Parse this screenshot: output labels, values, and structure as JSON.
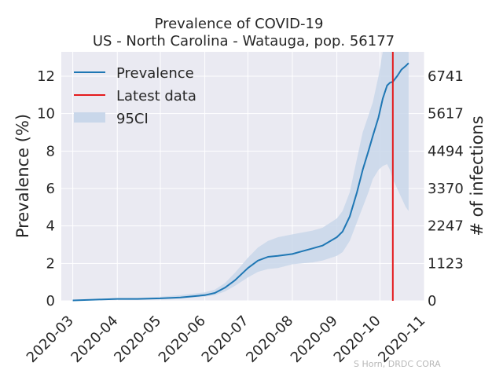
{
  "chart_data": {
    "type": "line",
    "title": "Prevalence of COVID-19",
    "subtitle": "US - North Carolina - Watauga, pop. 56177",
    "ylabel": "Prevalence (%)",
    "y2label": "# of infections",
    "credit": "S Horn, DRDC CORA",
    "xlim": [
      "2020-02-22",
      "2020-11-01"
    ],
    "ylim": [
      0,
      13.3
    ],
    "x_ticks": [
      "2020-03",
      "2020-04",
      "2020-05",
      "2020-06",
      "2020-07",
      "2020-08",
      "2020-09",
      "2020-10",
      "2020-11"
    ],
    "y_ticks": [
      0,
      2,
      4,
      6,
      8,
      10,
      12
    ],
    "y2_ticks": [
      {
        "value": 0,
        "label": "0"
      },
      {
        "value": 1123,
        "label": "1123"
      },
      {
        "value": 2247,
        "label": "2247"
      },
      {
        "value": 3370,
        "label": "3370"
      },
      {
        "value": 4494,
        "label": "4494"
      },
      {
        "value": 5617,
        "label": "5617"
      },
      {
        "value": 6741,
        "label": "6741"
      }
    ],
    "population": 56177,
    "grid": true,
    "legend_position": "top-left",
    "legend": [
      "Prevalence",
      "Latest data",
      "95CI"
    ],
    "latest_data": "2020-10-10",
    "colors": {
      "prevalence": "#1f77b4",
      "latest": "#e41a1c",
      "ci": "#c9d7ea",
      "background": "#eaeaf2",
      "grid": "#ffffff"
    },
    "series": [
      {
        "name": "Prevalence",
        "x": [
          "2020-03-01",
          "2020-03-15",
          "2020-04-01",
          "2020-04-15",
          "2020-05-01",
          "2020-05-15",
          "2020-06-01",
          "2020-06-08",
          "2020-06-15",
          "2020-06-22",
          "2020-07-01",
          "2020-07-08",
          "2020-07-15",
          "2020-07-22",
          "2020-08-01",
          "2020-08-08",
          "2020-08-15",
          "2020-08-22",
          "2020-09-01",
          "2020-09-05",
          "2020-09-10",
          "2020-09-15",
          "2020-09-19",
          "2020-09-23",
          "2020-09-26",
          "2020-09-30",
          "2020-10-03",
          "2020-10-06",
          "2020-10-08",
          "2020-10-10",
          "2020-10-13",
          "2020-10-16",
          "2020-10-19",
          "2020-10-21"
        ],
        "y": [
          0.02,
          0.06,
          0.1,
          0.1,
          0.13,
          0.18,
          0.3,
          0.42,
          0.7,
          1.1,
          1.75,
          2.15,
          2.35,
          2.4,
          2.5,
          2.65,
          2.8,
          2.95,
          3.4,
          3.7,
          4.5,
          5.8,
          7.0,
          8.0,
          8.8,
          9.8,
          10.8,
          11.5,
          11.65,
          11.7,
          12.0,
          12.35,
          12.55,
          12.7
        ]
      },
      {
        "name": "95CI",
        "x": [
          "2020-03-01",
          "2020-03-15",
          "2020-04-01",
          "2020-04-15",
          "2020-05-01",
          "2020-05-15",
          "2020-06-01",
          "2020-06-08",
          "2020-06-15",
          "2020-06-22",
          "2020-07-01",
          "2020-07-08",
          "2020-07-15",
          "2020-07-22",
          "2020-08-01",
          "2020-08-08",
          "2020-08-15",
          "2020-08-22",
          "2020-09-01",
          "2020-09-05",
          "2020-09-10",
          "2020-09-15",
          "2020-09-19",
          "2020-09-23",
          "2020-09-26",
          "2020-09-30",
          "2020-10-03",
          "2020-10-06",
          "2020-10-08",
          "2020-10-10",
          "2020-10-13",
          "2020-10-16",
          "2020-10-19",
          "2020-10-21"
        ],
        "lower": [
          0.01,
          0.04,
          0.07,
          0.07,
          0.09,
          0.13,
          0.22,
          0.3,
          0.5,
          0.8,
          1.25,
          1.55,
          1.7,
          1.75,
          1.95,
          2.0,
          2.05,
          2.15,
          2.4,
          2.6,
          3.2,
          4.2,
          5.0,
          5.8,
          6.5,
          7.0,
          7.2,
          7.3,
          7.0,
          6.5,
          6.0,
          5.5,
          5.0,
          4.8
        ],
        "upper": [
          0.03,
          0.09,
          0.15,
          0.16,
          0.22,
          0.3,
          0.45,
          0.6,
          0.95,
          1.5,
          2.3,
          2.85,
          3.2,
          3.4,
          3.55,
          3.65,
          3.75,
          3.9,
          4.4,
          4.8,
          5.8,
          7.6,
          9.0,
          9.9,
          10.6,
          12.0,
          13.3,
          13.3,
          13.3,
          13.3,
          13.3,
          13.3,
          13.3,
          13.3
        ]
      }
    ]
  }
}
